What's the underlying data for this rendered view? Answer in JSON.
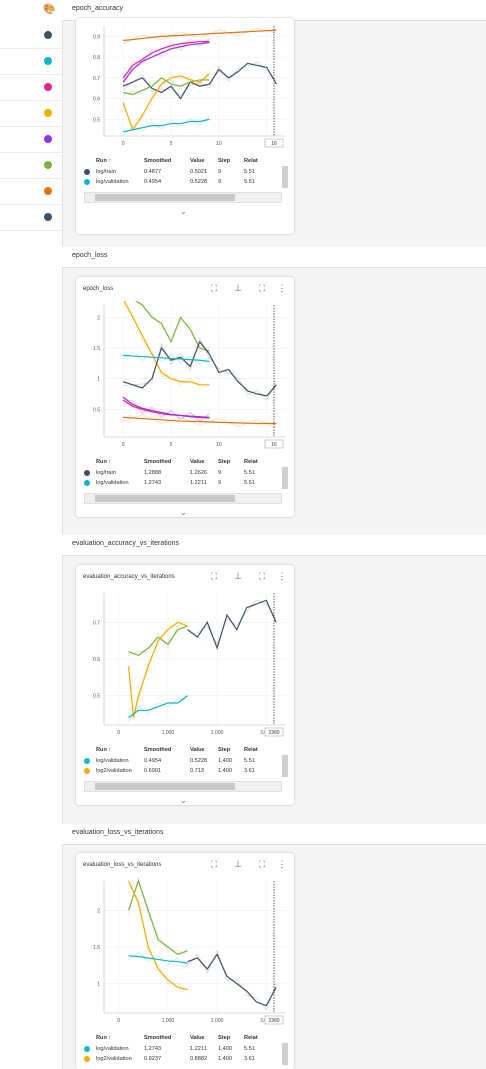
{
  "sidebar": {
    "palette_icon": "palette-icon",
    "run_colors": [
      "#425066",
      "#12b5cb",
      "#e52592",
      "#f9ab00",
      "#9334e6",
      "#7cb342",
      "#e8710a",
      "#425066"
    ]
  },
  "colors": {
    "train": "#425066",
    "validation": "#12b5cb",
    "log2": "#f9ab00",
    "pink": "#e52592",
    "purple": "#9334e6",
    "green": "#7cb342",
    "orange": "#e8710a"
  },
  "table_headers": {
    "run": "Run ↑",
    "smoothed": "Smoothed",
    "value": "Value",
    "step": "Step",
    "relative": "Relat"
  },
  "icons": {
    "expand": "fit-domain-icon",
    "pin": "pin-icon",
    "fullscreen": "fullscreen-icon",
    "more": "more-vert-icon",
    "chevron": "chevron-down-icon"
  },
  "sections": [
    {
      "title": "epoch_accuracy",
      "card_title": "",
      "rows": [
        {
          "run": "log/train",
          "smoothed": "0.4877",
          "value": "0.5021",
          "step": "9",
          "relative": "5.51",
          "color": "#425066"
        },
        {
          "run": "log/validation",
          "smoothed": "0.4954",
          "value": "0.5228",
          "step": "9",
          "relative": "5.51",
          "color": "#12b5cb"
        }
      ],
      "chart_data": {
        "type": "line",
        "x_ticks": [
          "0",
          "5",
          "10",
          "15"
        ],
        "y_ticks": [
          "0.5",
          "0.6",
          "0.7",
          "0.8",
          "0.9"
        ],
        "cursor_label": "16",
        "xlim": [
          -2,
          17
        ],
        "ylim": [
          0.42,
          0.95
        ],
        "series": [
          {
            "color": "#e8710a",
            "x": [
              0,
              2,
              4,
              6,
              8,
              10,
              12,
              14,
              16
            ],
            "y": [
              0.88,
              0.89,
              0.9,
              0.905,
              0.91,
              0.915,
              0.92,
              0.925,
              0.93
            ]
          },
          {
            "color": "#e52592",
            "x": [
              0,
              1,
              2,
              3,
              4,
              5,
              6,
              7,
              8,
              9
            ],
            "y": [
              0.7,
              0.76,
              0.79,
              0.82,
              0.84,
              0.855,
              0.865,
              0.87,
              0.875,
              0.875
            ]
          },
          {
            "color": "#9334e6",
            "x": [
              0,
              1,
              2,
              3,
              4,
              5,
              6,
              7,
              8,
              9
            ],
            "y": [
              0.68,
              0.74,
              0.78,
              0.8,
              0.82,
              0.84,
              0.85,
              0.86,
              0.865,
              0.87
            ]
          },
          {
            "color": "#425066",
            "x": [
              0,
              2,
              3,
              4,
              5,
              6,
              7,
              8,
              9,
              10,
              11,
              12,
              13,
              14,
              15,
              16
            ],
            "y": [
              0.66,
              0.7,
              0.65,
              0.63,
              0.66,
              0.6,
              0.68,
              0.66,
              0.67,
              0.74,
              0.7,
              0.73,
              0.77,
              0.76,
              0.75,
              0.67
            ]
          },
          {
            "color": "#7cb342",
            "x": [
              0,
              1,
              2,
              3,
              4,
              5,
              6,
              7,
              8,
              9
            ],
            "y": [
              0.63,
              0.62,
              0.64,
              0.66,
              0.7,
              0.67,
              0.66,
              0.68,
              0.69,
              0.69
            ]
          },
          {
            "color": "#f9ab00",
            "x": [
              0,
              1,
              2,
              3,
              4,
              5,
              6,
              7,
              8,
              9
            ],
            "y": [
              0.58,
              0.45,
              0.52,
              0.6,
              0.67,
              0.7,
              0.71,
              0.69,
              0.68,
              0.72
            ]
          },
          {
            "color": "#12b5cb",
            "x": [
              0,
              1,
              2,
              3,
              4,
              5,
              6,
              7,
              8,
              9
            ],
            "y": [
              0.44,
              0.45,
              0.46,
              0.47,
              0.47,
              0.48,
              0.48,
              0.49,
              0.49,
              0.5
            ]
          }
        ]
      }
    },
    {
      "title": "epoch_loss",
      "card_title": "epoch_loss",
      "rows": [
        {
          "run": "log/train",
          "smoothed": "1.2888",
          "value": "1.2626",
          "step": "9",
          "relative": "5.51",
          "color": "#425066"
        },
        {
          "run": "log/validation",
          "smoothed": "1.2743",
          "value": "1.2211",
          "step": "9",
          "relative": "5.51",
          "color": "#12b5cb"
        }
      ],
      "chart_data": {
        "type": "line",
        "x_ticks": [
          "0",
          "5",
          "10",
          "15"
        ],
        "y_ticks": [
          "0.5",
          "1",
          "1.5",
          "2"
        ],
        "cursor_label": "16",
        "xlim": [
          -2,
          17
        ],
        "ylim": [
          0.05,
          2.2
        ],
        "series": [
          {
            "color": "#7cb342",
            "x": [
              0,
              1,
              2,
              3,
              4,
              5,
              6,
              7,
              8,
              9
            ],
            "y": [
              2.4,
              2.3,
              2.2,
              2.0,
              1.9,
              1.6,
              2.0,
              1.8,
              1.5,
              1.45
            ]
          },
          {
            "color": "#f9ab00",
            "x": [
              0,
              1,
              2,
              3,
              4,
              5,
              6,
              7,
              8,
              9
            ],
            "y": [
              2.3,
              2.0,
              1.7,
              1.4,
              1.1,
              1.0,
              0.95,
              0.95,
              0.9,
              0.9
            ]
          },
          {
            "color": "#425066",
            "x": [
              0,
              2,
              3,
              4,
              5,
              6,
              7,
              8,
              9,
              10,
              11,
              12,
              13,
              14,
              15,
              16
            ],
            "y": [
              0.95,
              0.85,
              1.0,
              1.5,
              1.3,
              1.35,
              1.2,
              1.6,
              1.4,
              1.1,
              1.15,
              0.95,
              0.8,
              0.75,
              0.72,
              0.9
            ]
          },
          {
            "color": "#12b5cb",
            "x": [
              0,
              1,
              2,
              3,
              4,
              5,
              6,
              7,
              8,
              9
            ],
            "y": [
              1.38,
              1.37,
              1.36,
              1.35,
              1.34,
              1.33,
              1.32,
              1.31,
              1.3,
              1.28
            ]
          },
          {
            "color": "#e52592",
            "x": [
              0,
              1,
              2,
              3,
              4,
              5,
              6,
              7,
              8,
              9
            ],
            "y": [
              0.65,
              0.55,
              0.5,
              0.46,
              0.43,
              0.41,
              0.4,
              0.39,
              0.38,
              0.37
            ]
          },
          {
            "color": "#9334e6",
            "x": [
              0,
              1,
              2,
              3,
              4,
              5,
              6,
              7,
              8,
              9
            ],
            "y": [
              0.7,
              0.58,
              0.52,
              0.48,
              0.45,
              0.42,
              0.4,
              0.38,
              0.37,
              0.36
            ]
          },
          {
            "color": "#e8710a",
            "x": [
              0,
              2,
              4,
              6,
              8,
              10,
              12,
              14,
              16
            ],
            "y": [
              0.37,
              0.35,
              0.33,
              0.31,
              0.3,
              0.29,
              0.28,
              0.27,
              0.27
            ]
          }
        ]
      }
    },
    {
      "title": "evaluation_accuracy_vs_iterations",
      "card_title": "evaluation_accuracy_vs_iterations",
      "rows": [
        {
          "run": "log/validation",
          "smoothed": "0.4954",
          "value": "0.5228",
          "step": "1,400",
          "relative": "5.51",
          "color": "#12b5cb"
        },
        {
          "run": "log2/validation",
          "smoothed": "0.6901",
          "value": "0.713",
          "step": "1,400",
          "relative": "3.61",
          "color": "#f9ab00"
        }
      ],
      "chart_data": {
        "type": "line",
        "x_ticks": [
          "0",
          "1,000",
          "2,000",
          "3,000"
        ],
        "y_ticks": [
          "0.5",
          "0.6",
          "0.7"
        ],
        "cursor_label": "2360",
        "xlim": [
          -300,
          3400
        ],
        "ylim": [
          0.42,
          0.78
        ],
        "series": [
          {
            "color": "#425066",
            "x": [
              1400,
              1600,
              1800,
              2000,
              2200,
              2400,
              2600,
              2800,
              3000,
              3200
            ],
            "y": [
              0.68,
              0.66,
              0.7,
              0.63,
              0.72,
              0.68,
              0.74,
              0.75,
              0.76,
              0.7
            ]
          },
          {
            "color": "#7cb342",
            "x": [
              200,
              400,
              600,
              800,
              1000,
              1200,
              1400
            ],
            "y": [
              0.62,
              0.61,
              0.63,
              0.66,
              0.64,
              0.68,
              0.69
            ]
          },
          {
            "color": "#f9ab00",
            "x": [
              200,
              300,
              400,
              600,
              800,
              1000,
              1200,
              1400
            ],
            "y": [
              0.58,
              0.44,
              0.5,
              0.58,
              0.65,
              0.68,
              0.7,
              0.69
            ]
          },
          {
            "color": "#12b5cb",
            "x": [
              200,
              400,
              600,
              800,
              1000,
              1200,
              1400
            ],
            "y": [
              0.44,
              0.46,
              0.46,
              0.47,
              0.48,
              0.48,
              0.5
            ]
          }
        ]
      }
    },
    {
      "title": "evaluation_loss_vs_iterations",
      "card_title": "evaluation_loss_vs_iterations",
      "rows": [
        {
          "run": "log/validation",
          "smoothed": "1.2743",
          "value": "1.2211",
          "step": "1,400",
          "relative": "5.51",
          "color": "#12b5cb"
        },
        {
          "run": "log2/validation",
          "smoothed": "0.9237",
          "value": "0.8882",
          "step": "1,400",
          "relative": "3.61",
          "color": "#f9ab00"
        }
      ],
      "chart_data": {
        "type": "line",
        "x_ticks": [
          "0",
          "1,000",
          "2,000",
          "3,000"
        ],
        "y_ticks": [
          "1",
          "1.5",
          "2"
        ],
        "cursor_label": "2360",
        "xlim": [
          -300,
          3400
        ],
        "ylim": [
          0.6,
          2.4
        ],
        "series": [
          {
            "color": "#7cb342",
            "x": [
              200,
              400,
              600,
              800,
              1000,
              1200,
              1400
            ],
            "y": [
              2.0,
              2.4,
              2.0,
              1.6,
              1.5,
              1.4,
              1.45
            ]
          },
          {
            "color": "#f9ab00",
            "x": [
              200,
              400,
              600,
              800,
              1000,
              1200,
              1400
            ],
            "y": [
              2.4,
              2.1,
              1.5,
              1.2,
              1.05,
              0.95,
              0.92
            ]
          },
          {
            "color": "#425066",
            "x": [
              1400,
              1600,
              1800,
              2000,
              2200,
              2400,
              2600,
              2800,
              3000,
              3200
            ],
            "y": [
              1.3,
              1.35,
              1.2,
              1.4,
              1.1,
              1.0,
              0.9,
              0.75,
              0.7,
              0.95
            ]
          },
          {
            "color": "#12b5cb",
            "x": [
              200,
              400,
              600,
              800,
              1000,
              1200,
              1400
            ],
            "y": [
              1.38,
              1.37,
              1.35,
              1.33,
              1.31,
              1.3,
              1.28
            ]
          }
        ]
      }
    }
  ]
}
